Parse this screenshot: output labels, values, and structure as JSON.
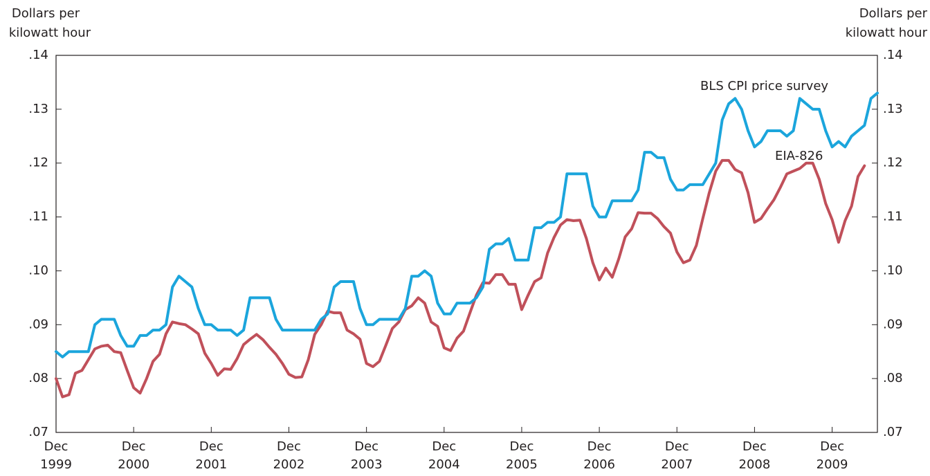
{
  "chart_data": {
    "type": "line",
    "y_label": [
      "Dollars per",
      "kilowatt hour"
    ],
    "y2_label": [
      "Dollars per",
      "kilowatt hour"
    ],
    "x": [
      "1999-12",
      "2000-01",
      "2000-02",
      "2000-03",
      "2000-04",
      "2000-05",
      "2000-06",
      "2000-07",
      "2000-08",
      "2000-09",
      "2000-10",
      "2000-11",
      "2000-12",
      "2001-01",
      "2001-02",
      "2001-03",
      "2001-04",
      "2001-05",
      "2001-06",
      "2001-07",
      "2001-08",
      "2001-09",
      "2001-10",
      "2001-11",
      "2001-12",
      "2002-01",
      "2002-02",
      "2002-03",
      "2002-04",
      "2002-05",
      "2002-06",
      "2002-07",
      "2002-08",
      "2002-09",
      "2002-10",
      "2002-11",
      "2002-12",
      "2003-01",
      "2003-02",
      "2003-03",
      "2003-04",
      "2003-05",
      "2003-06",
      "2003-07",
      "2003-08",
      "2003-09",
      "2003-10",
      "2003-11",
      "2003-12",
      "2004-01",
      "2004-02",
      "2004-03",
      "2004-04",
      "2004-05",
      "2004-06",
      "2004-07",
      "2004-08",
      "2004-09",
      "2004-10",
      "2004-11",
      "2004-12",
      "2005-01",
      "2005-02",
      "2005-03",
      "2005-04",
      "2005-05",
      "2005-06",
      "2005-07",
      "2005-08",
      "2005-09",
      "2005-10",
      "2005-11",
      "2005-12",
      "2006-01",
      "2006-02",
      "2006-03",
      "2006-04",
      "2006-05",
      "2006-06",
      "2006-07",
      "2006-08",
      "2006-09",
      "2006-10",
      "2006-11",
      "2006-12",
      "2007-01",
      "2007-02",
      "2007-03",
      "2007-04",
      "2007-05",
      "2007-06",
      "2007-07",
      "2007-08",
      "2007-09",
      "2007-10",
      "2007-11",
      "2007-12",
      "2008-01",
      "2008-02",
      "2008-03",
      "2008-04",
      "2008-05",
      "2008-06",
      "2008-07",
      "2008-08",
      "2008-09",
      "2008-10",
      "2008-11",
      "2008-12",
      "2009-01",
      "2009-02",
      "2009-03",
      "2009-04",
      "2009-05",
      "2009-06",
      "2009-07",
      "2009-08",
      "2009-09",
      "2009-10",
      "2009-11",
      "2009-12",
      "2010-01",
      "2010-02",
      "2010-03",
      "2010-04",
      "2010-05",
      "2010-06",
      "2010-07"
    ],
    "xlim": [
      "1999-12",
      "2010-07"
    ],
    "xticks": [
      {
        "value": "1999-12",
        "label": [
          "Dec",
          "1999"
        ]
      },
      {
        "value": "2000-12",
        "label": [
          "Dec",
          "2000"
        ]
      },
      {
        "value": "2001-12",
        "label": [
          "Dec",
          "2001"
        ]
      },
      {
        "value": "2002-12",
        "label": [
          "Dec",
          "2002"
        ]
      },
      {
        "value": "2003-12",
        "label": [
          "Dec",
          "2003"
        ]
      },
      {
        "value": "2004-12",
        "label": [
          "Dec",
          "2004"
        ]
      },
      {
        "value": "2005-12",
        "label": [
          "Dec",
          "2005"
        ]
      },
      {
        "value": "2006-12",
        "label": [
          "Dec",
          "2006"
        ]
      },
      {
        "value": "2007-12",
        "label": [
          "Dec",
          "2007"
        ]
      },
      {
        "value": "2008-12",
        "label": [
          "Dec",
          "2008"
        ]
      },
      {
        "value": "2009-12",
        "label": [
          "Dec",
          "2009"
        ]
      }
    ],
    "ylim": [
      0.07,
      0.14
    ],
    "yticks": [
      {
        "value": 0.07,
        "label": ".07"
      },
      {
        "value": 0.08,
        "label": ".08"
      },
      {
        "value": 0.09,
        "label": ".09"
      },
      {
        "value": 0.1,
        "label": ".10"
      },
      {
        "value": 0.11,
        "label": ".11"
      },
      {
        "value": 0.12,
        "label": ".12"
      },
      {
        "value": 0.13,
        "label": ".13"
      },
      {
        "value": 0.14,
        "label": ".14"
      }
    ],
    "y2lim": [
      0.07,
      0.14
    ],
    "y2ticks": [
      {
        "value": 0.07,
        "label": ".07"
      },
      {
        "value": 0.08,
        "label": ".08"
      },
      {
        "value": 0.09,
        "label": ".09"
      },
      {
        "value": 0.1,
        "label": ".10"
      },
      {
        "value": 0.11,
        "label": ".11"
      },
      {
        "value": 0.12,
        "label": ".12"
      },
      {
        "value": 0.13,
        "label": ".13"
      },
      {
        "value": 0.14,
        "label": ".14"
      }
    ],
    "series": [
      {
        "name": "BLS CPI price survey",
        "color": "#1ba5dc",
        "values": [
          0.085,
          0.084,
          0.085,
          0.085,
          0.085,
          0.085,
          0.09,
          0.091,
          0.091,
          0.091,
          0.088,
          0.086,
          0.086,
          0.088,
          0.088,
          0.089,
          0.089,
          0.09,
          0.097,
          0.099,
          0.098,
          0.097,
          0.093,
          0.09,
          0.09,
          0.089,
          0.089,
          0.089,
          0.088,
          0.089,
          0.095,
          0.095,
          0.095,
          0.095,
          0.091,
          0.089,
          0.089,
          0.089,
          0.089,
          0.089,
          0.089,
          0.091,
          0.092,
          0.097,
          0.098,
          0.098,
          0.098,
          0.093,
          0.09,
          0.09,
          0.091,
          0.091,
          0.091,
          0.091,
          0.093,
          0.099,
          0.099,
          0.1,
          0.099,
          0.094,
          0.092,
          0.092,
          0.094,
          0.094,
          0.094,
          0.095,
          0.097,
          0.104,
          0.105,
          0.105,
          0.106,
          0.102,
          0.102,
          0.102,
          0.108,
          0.108,
          0.109,
          0.109,
          0.11,
          0.118,
          0.118,
          0.118,
          0.118,
          0.112,
          0.11,
          0.11,
          0.113,
          0.113,
          0.113,
          0.113,
          0.115,
          0.122,
          0.122,
          0.121,
          0.121,
          0.117,
          0.115,
          0.115,
          0.116,
          0.116,
          0.116,
          0.118,
          0.12,
          0.128,
          0.131,
          0.132,
          0.13,
          0.126,
          0.123,
          0.124,
          0.126,
          0.126,
          0.126,
          0.125,
          0.126,
          0.132,
          0.131,
          0.13,
          0.13,
          0.126,
          0.123,
          0.124,
          0.123,
          0.125,
          0.126,
          0.127,
          0.132,
          0.133
        ]
      },
      {
        "name": "EIA-826",
        "color": "#c0505a",
        "values": [
          0.08,
          0.0766,
          0.077,
          0.081,
          0.0815,
          0.0835,
          0.0855,
          0.086,
          0.0862,
          0.085,
          0.0848,
          0.0815,
          0.0783,
          0.0773,
          0.08,
          0.0832,
          0.0845,
          0.0883,
          0.0905,
          0.0902,
          0.09,
          0.0892,
          0.0883,
          0.0847,
          0.0828,
          0.0806,
          0.0818,
          0.0817,
          0.0837,
          0.0863,
          0.0873,
          0.0882,
          0.0872,
          0.0858,
          0.0845,
          0.0828,
          0.0808,
          0.0802,
          0.0803,
          0.0835,
          0.0882,
          0.09,
          0.0925,
          0.0922,
          0.0922,
          0.089,
          0.0883,
          0.0873,
          0.0828,
          0.0822,
          0.0832,
          0.0862,
          0.0893,
          0.0905,
          0.0928,
          0.0935,
          0.095,
          0.094,
          0.0905,
          0.0897,
          0.0857,
          0.0852,
          0.0875,
          0.0888,
          0.0922,
          0.0955,
          0.0978,
          0.0977,
          0.0993,
          0.0993,
          0.0975,
          0.0975,
          0.0928,
          0.0955,
          0.098,
          0.0987,
          0.1033,
          0.1062,
          0.1085,
          0.1095,
          0.1093,
          0.1094,
          0.106,
          0.1015,
          0.0983,
          0.1005,
          0.0988,
          0.1022,
          0.1063,
          0.1078,
          0.1108,
          0.1107,
          0.1107,
          0.1097,
          0.1082,
          0.107,
          0.1035,
          0.1015,
          0.102,
          0.1047,
          0.1097,
          0.1145,
          0.1185,
          0.1205,
          0.1205,
          0.1188,
          0.1182,
          0.1145,
          0.109,
          0.1097,
          0.1115,
          0.1132,
          0.1155,
          0.118,
          0.1185,
          0.119,
          0.12,
          0.12,
          0.117,
          0.1125,
          0.1095,
          0.1053,
          0.1093,
          0.112,
          0.1175,
          0.1195,
          null,
          null
        ]
      }
    ]
  }
}
